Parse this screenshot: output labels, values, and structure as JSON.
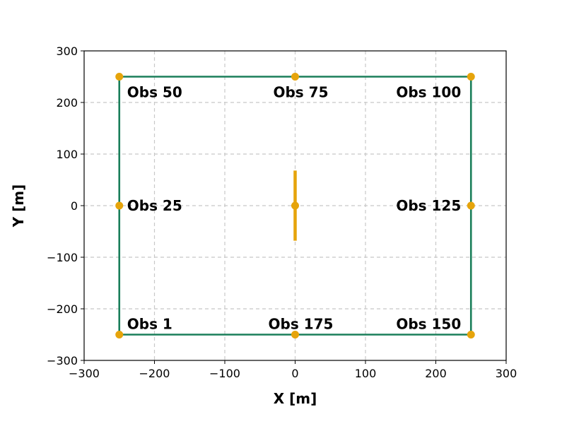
{
  "chart_data": {
    "type": "scatter",
    "xlabel": "X [m]",
    "ylabel": "Y [m]",
    "xlim": [
      -300,
      300
    ],
    "ylim": [
      -300,
      300
    ],
    "xticks": [
      -300,
      -200,
      -100,
      0,
      100,
      200,
      300
    ],
    "yticks": [
      -300,
      -200,
      -100,
      0,
      100,
      200,
      300
    ],
    "xtick_labels": [
      "−300",
      "−200",
      "−100",
      "0",
      "100",
      "200",
      "300"
    ],
    "ytick_labels": [
      "−300",
      "−200",
      "−100",
      "0",
      "100",
      "200",
      "300"
    ],
    "grid": true,
    "boundary": {
      "color": "#1a7f5a",
      "x": [
        -250,
        250,
        250,
        -250,
        -250
      ],
      "y": [
        -250,
        -250,
        250,
        250,
        -250
      ]
    },
    "source_segment": {
      "color": "#e6a40b",
      "x": [
        0,
        0
      ],
      "y": [
        -68,
        68
      ]
    },
    "source_point": {
      "x": 0,
      "y": 0,
      "color": "#e6a40b"
    },
    "observers": {
      "color": "#e6a40b",
      "points": [
        {
          "label": "Obs 1",
          "x": -250,
          "y": -250,
          "anchor": "right"
        },
        {
          "label": "Obs 25",
          "x": -250,
          "y": 0,
          "anchor": "right"
        },
        {
          "label": "Obs 50",
          "x": -250,
          "y": 250,
          "anchor": "right"
        },
        {
          "label": "Obs 75",
          "x": 0,
          "y": 250,
          "anchor": "center"
        },
        {
          "label": "Obs 100",
          "x": 250,
          "y": 250,
          "anchor": "left"
        },
        {
          "label": "Obs 125",
          "x": 250,
          "y": 0,
          "anchor": "left"
        },
        {
          "label": "Obs 150",
          "x": 250,
          "y": -250,
          "anchor": "left"
        },
        {
          "label": "Obs 175",
          "x": 0,
          "y": -250,
          "anchor": "center"
        }
      ]
    }
  }
}
